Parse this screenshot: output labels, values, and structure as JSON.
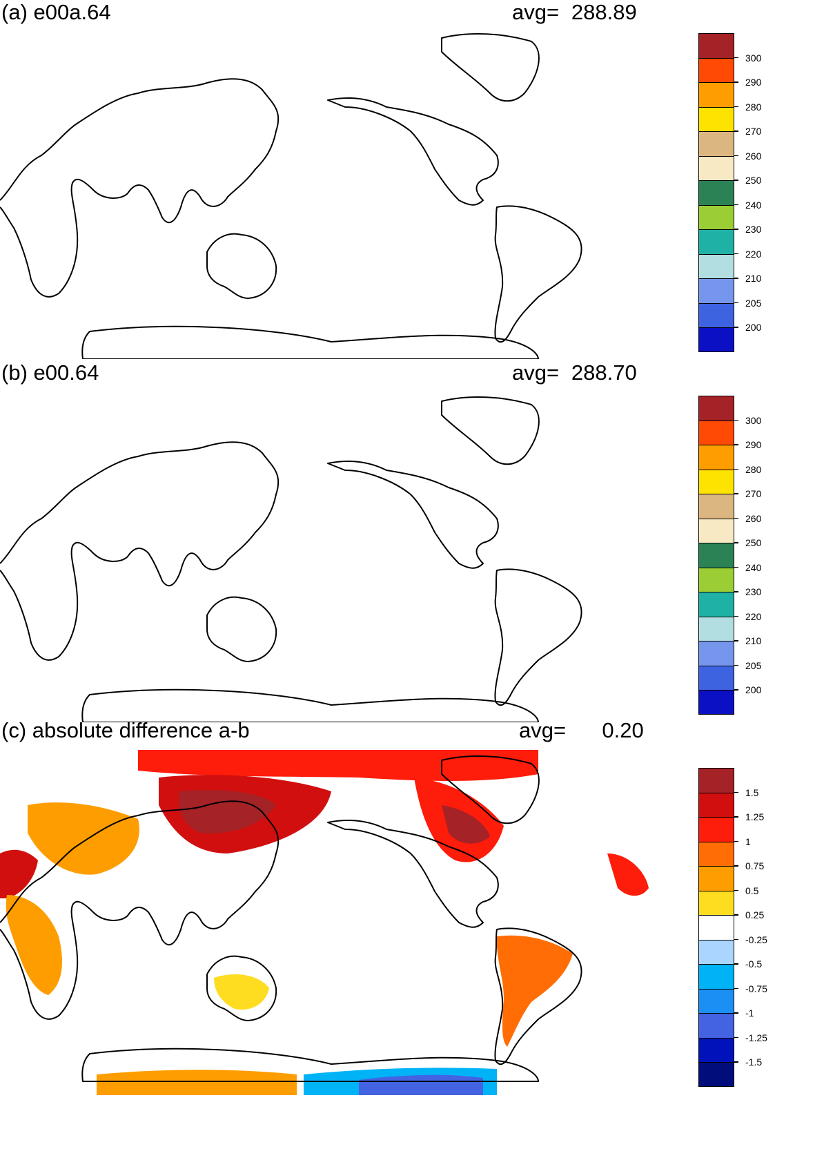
{
  "panels": [
    {
      "title": "(a) e00a.64",
      "avg_label": "avg=",
      "avg_value": "288.89",
      "colorbar": {
        "labels": [
          "300",
          "290",
          "280",
          "270",
          "260",
          "250",
          "240",
          "230",
          "220",
          "210",
          "205",
          "200"
        ],
        "colors": [
          "#a52226",
          "#fe4a04",
          "#fe9d00",
          "#fee300",
          "#dcb680",
          "#f6e9c4",
          "#2b8254",
          "#9bcd34",
          "#1fb1a5",
          "#b2dee1",
          "#7696ee",
          "#3e63e0",
          "#0b10c4"
        ]
      }
    },
    {
      "title": "(b) e00.64",
      "avg_label": "avg=",
      "avg_value": "288.70",
      "colorbar": {
        "labels": [
          "300",
          "290",
          "280",
          "270",
          "260",
          "250",
          "240",
          "230",
          "220",
          "210",
          "205",
          "200"
        ],
        "colors": [
          "#a52226",
          "#fe4a04",
          "#fe9d00",
          "#fee300",
          "#dcb680",
          "#f6e9c4",
          "#2b8254",
          "#9bcd34",
          "#1fb1a5",
          "#b2dee1",
          "#7696ee",
          "#3e63e0",
          "#0b10c4"
        ]
      }
    },
    {
      "title": "(c) absolute difference a-b",
      "avg_label": "avg=",
      "avg_value": "0.20",
      "colorbar": {
        "labels": [
          "1.5",
          "1.25",
          "1",
          "0.75",
          "0.5",
          "0.25",
          "-0.25",
          "-0.5",
          "-0.75",
          "-1",
          "-1.25",
          "-1.5"
        ],
        "colors": [
          "#a52226",
          "#d20f0f",
          "#fe1c0b",
          "#ff6d04",
          "#fe9d00",
          "#fedd20",
          "#ffffff",
          "#a9d5ff",
          "#00b3f6",
          "#1c8ff4",
          "#4363e2",
          "#0012b9",
          "#000d7b"
        ]
      }
    }
  ]
}
